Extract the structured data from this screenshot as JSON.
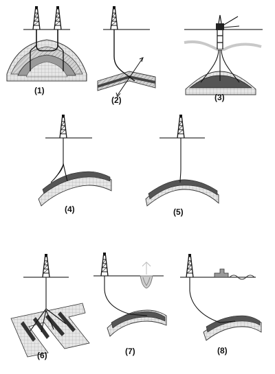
{
  "labels": [
    "(1)",
    "(2)",
    "(3)",
    "(4)",
    "(5)",
    "(6)",
    "(7)",
    "(8)"
  ]
}
